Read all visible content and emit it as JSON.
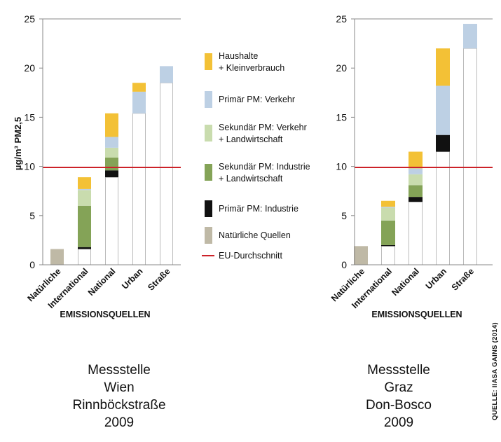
{
  "source_note": "QUELLE: IIASA GAINS (2014)",
  "colors": {
    "Haushalte + Kleinverbrauch": "#f3c136",
    "Primär PM: Verkehr": "#bdd0e4",
    "Sekundär PM: Verkehr + Landwirtschaft": "#c9dcae",
    "Sekundär PM: Industrie + Landwirtschaft": "#84a357",
    "Primär PM: Industrie": "#111111",
    "Natürliche Quellen": "#bfb9a6",
    "EU-Durchschnitt": "#cc2229",
    "base_outline": "#bbbbbb",
    "axis": "#888888"
  },
  "legend": [
    {
      "line1": "Haushalte",
      "line2": "+ Kleinverbrauch",
      "series": "Haushalte + Kleinverbrauch",
      "kind": "box"
    },
    {
      "line1": "Primär PM: Verkehr",
      "line2": "",
      "series": "Primär PM: Verkehr",
      "kind": "box"
    },
    {
      "line1": "Sekundär PM: Verkehr",
      "line2": "+ Landwirtschaft",
      "series": "Sekundär PM: Verkehr + Landwirtschaft",
      "kind": "box"
    },
    {
      "line1": "Sekundär PM: Industrie",
      "line2": "+ Landwirtschaft",
      "series": "Sekundär PM: Industrie + Landwirtschaft",
      "kind": "box"
    },
    {
      "line1": "Primär PM: Industrie",
      "line2": "",
      "series": "Primär PM: Industrie",
      "kind": "box"
    },
    {
      "line1": "Natürliche Quellen",
      "line2": "",
      "series": "Natürliche Quellen",
      "kind": "box"
    },
    {
      "line1": "EU-Durchschnitt",
      "line2": "",
      "series": "EU-Durchschnitt",
      "kind": "line"
    }
  ],
  "chart_data": [
    {
      "type": "bar",
      "stacking": "cumulative waterfall",
      "title_lines": [
        "Messstelle",
        "Wien",
        "Rinnböckstraße",
        "2009"
      ],
      "xlabel": "EMISSIONSQUELLEN",
      "ylabel": "µg/m³ PM2,5",
      "ylim": [
        0,
        25
      ],
      "yticks": [
        0,
        5,
        10,
        15,
        20,
        25
      ],
      "categories": [
        "Natürliche",
        "International",
        "National",
        "Urban",
        "Straße"
      ],
      "reference_line": {
        "name": "EU-Durchschnitt",
        "value": 9.9
      },
      "bars": [
        {
          "category": "Natürliche",
          "base": 0,
          "segments": [
            {
              "series": "Natürliche Quellen",
              "value": 1.6
            }
          ]
        },
        {
          "category": "International",
          "base": 1.6,
          "segments": [
            {
              "series": "Primär PM: Industrie",
              "value": 0.2
            },
            {
              "series": "Sekundär PM: Industrie + Landwirtschaft",
              "value": 4.2
            },
            {
              "series": "Sekundär PM: Verkehr + Landwirtschaft",
              "value": 1.6
            },
            {
              "series": "Primär PM: Verkehr",
              "value": 0.1
            },
            {
              "series": "Haushalte + Kleinverbrauch",
              "value": 1.2
            }
          ]
        },
        {
          "category": "National",
          "base": 8.9,
          "segments": [
            {
              "series": "Primär PM: Industrie",
              "value": 0.7
            },
            {
              "series": "Sekundär PM: Industrie + Landwirtschaft",
              "value": 1.3
            },
            {
              "series": "Sekundär PM: Verkehr + Landwirtschaft",
              "value": 1.0
            },
            {
              "series": "Primär PM: Verkehr",
              "value": 1.1
            },
            {
              "series": "Haushalte + Kleinverbrauch",
              "value": 2.4
            }
          ]
        },
        {
          "category": "Urban",
          "base": 15.4,
          "segments": [
            {
              "series": "Primär PM: Verkehr",
              "value": 2.2
            },
            {
              "series": "Haushalte + Kleinverbrauch",
              "value": 0.9
            }
          ]
        },
        {
          "category": "Straße",
          "base": 18.5,
          "segments": [
            {
              "series": "Primär PM: Verkehr",
              "value": 1.7
            }
          ]
        }
      ]
    },
    {
      "type": "bar",
      "stacking": "cumulative waterfall",
      "title_lines": [
        "Messstelle",
        "Graz",
        "Don-Bosco",
        "2009"
      ],
      "xlabel": "EMISSIONSQUELLEN",
      "ylabel": "",
      "ylim": [
        0,
        25
      ],
      "yticks": [
        0,
        5,
        10,
        15,
        20,
        25
      ],
      "categories": [
        "Natürliche",
        "International",
        "National",
        "Urban",
        "Straße"
      ],
      "reference_line": {
        "name": "EU-Durchschnitt",
        "value": 9.9
      },
      "bars": [
        {
          "category": "Natürliche",
          "base": 0,
          "segments": [
            {
              "series": "Natürliche Quellen",
              "value": 1.9
            }
          ]
        },
        {
          "category": "International",
          "base": 1.9,
          "segments": [
            {
              "series": "Primär PM: Industrie",
              "value": 0.1
            },
            {
              "series": "Sekundär PM: Industrie + Landwirtschaft",
              "value": 2.5
            },
            {
              "series": "Sekundär PM: Verkehr + Landwirtschaft",
              "value": 1.3
            },
            {
              "series": "Primär PM: Verkehr",
              "value": 0.1
            },
            {
              "series": "Haushalte + Kleinverbrauch",
              "value": 0.6
            }
          ]
        },
        {
          "category": "National",
          "base": 6.4,
          "segments": [
            {
              "series": "Primär PM: Industrie",
              "value": 0.5
            },
            {
              "series": "Sekundär PM: Industrie + Landwirtschaft",
              "value": 1.2
            },
            {
              "series": "Sekundär PM: Verkehr + Landwirtschaft",
              "value": 1.1
            },
            {
              "series": "Primär PM: Verkehr",
              "value": 0.6
            },
            {
              "series": "Haushalte + Kleinverbrauch",
              "value": 1.7
            }
          ]
        },
        {
          "category": "Urban",
          "base": 11.5,
          "segments": [
            {
              "series": "Primär PM: Industrie",
              "value": 1.7
            },
            {
              "series": "Primär PM: Verkehr",
              "value": 5.0
            },
            {
              "series": "Haushalte + Kleinverbrauch",
              "value": 3.8
            }
          ]
        },
        {
          "category": "Straße",
          "base": 22.0,
          "segments": [
            {
              "series": "Primär PM: Verkehr",
              "value": 2.5
            }
          ]
        }
      ]
    }
  ]
}
